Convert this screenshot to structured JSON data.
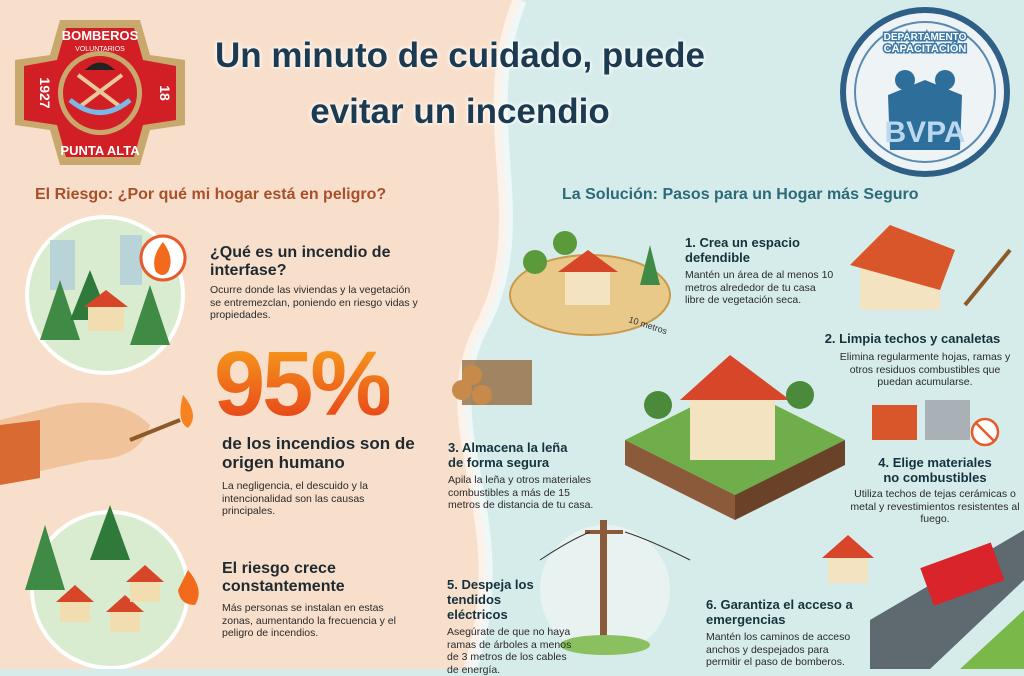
{
  "title": {
    "line1": "Un minuto de cuidado, puede",
    "line2": "evitar un incendio"
  },
  "logo_left": {
    "top": "BOMBEROS",
    "sub": "VOLUNTARIOS",
    "year_left": "1927",
    "year_right": "18",
    "bottom": "PUNTA ALTA"
  },
  "logo_right": {
    "arc": "DEPARTAMENTO CAPACITACIÓN",
    "letters": "BVPA"
  },
  "risk": {
    "heading": "El Riesgo: ¿Por qué mi hogar está en peligro?",
    "items": [
      {
        "title": "¿Qué es un incendio de interfase?",
        "body": "Ocurre donde las viviendas y la vegetación se entremezclan, poniendo en riesgo vidas y propiedades."
      },
      {
        "stat": "95%",
        "title": "de los incendios son de origen humano",
        "body": "La negligencia, el descuido y la intencionalidad son las causas principales."
      },
      {
        "title": "El riesgo crece constantemente",
        "body": "Más personas se instalan en estas zonas, aumentando la frecuencia y el peligro de incendios."
      }
    ]
  },
  "solution": {
    "heading": "La Solución: Pasos para un Hogar más Seguro",
    "distance_label": "10 metros",
    "steps": [
      {
        "title": "1. Crea un espacio defendible",
        "body": "Mantén un área de al menos 10 metros alrededor de tu casa libre de vegetación seca."
      },
      {
        "title": "2. Limpia techos y canaletas",
        "body": "Elimina regularmente hojas, ramas y otros residuos combustibles que puedan acumularse."
      },
      {
        "title": "3. Almacena la leña de forma segura",
        "body": "Apila la leña y otros materiales combustibles a más de 15 metros de distancia de tu casa."
      },
      {
        "title": "4. Elige materiales no combustibles",
        "body": "Utiliza techos de tejas cerámicas o metal y revestimientos resistentes al fuego."
      },
      {
        "title": "5. Despeja los tendidos eléctricos",
        "body": "Asegúrate de que no haya ramas de árboles a menos de 3 metros de los cables de energía."
      },
      {
        "title": "6. Garantiza el acceso a emergencias",
        "body": "Mantén los caminos de acceso anchos y despejados para permitir el paso de bomberos."
      }
    ]
  },
  "colors": {
    "left_bg": "#f8dfcb",
    "right_bg": "#d6ecea",
    "title": "#1c3a50",
    "accent_orange": "#ee5a1c",
    "risk_heading": "#a8502a",
    "solution_heading": "#2b6a78"
  }
}
